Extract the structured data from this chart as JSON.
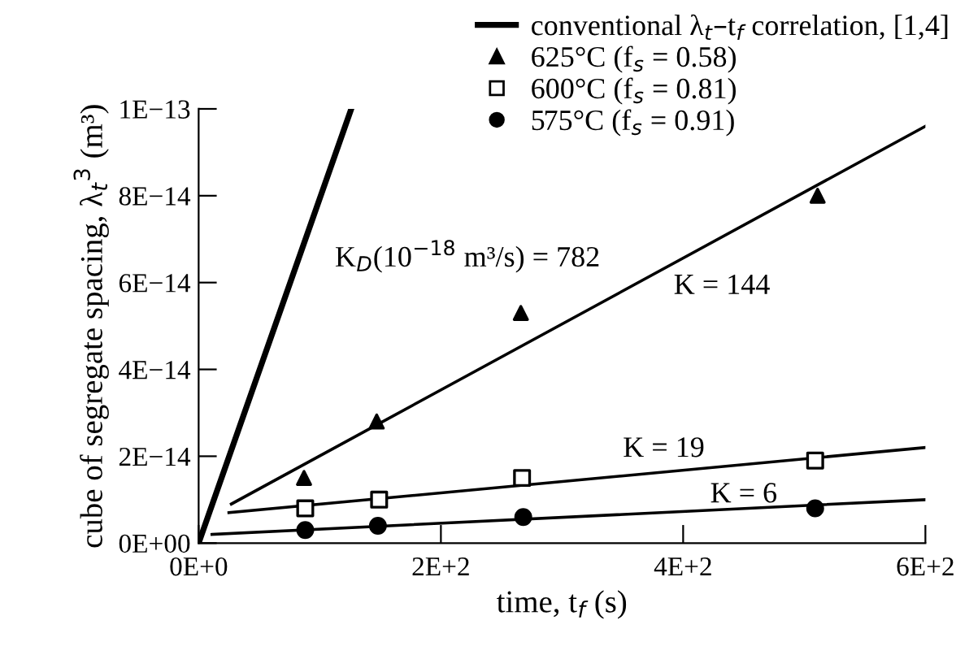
{
  "chart_data": {
    "type": "scatter",
    "xlabel": "time, t$_{f}$ (s)",
    "ylabel": "cube of segregate spacing, λ$_{t}$$^{3}$ (m³)",
    "xlim": [
      0,
      600
    ],
    "ylim": [
      0,
      1e-13
    ],
    "xticks": [
      {
        "value": 0,
        "label": "0E+0"
      },
      {
        "value": 200,
        "label": "2E+2"
      },
      {
        "value": 400,
        "label": "4E+2"
      },
      {
        "value": 600,
        "label": "6E+2"
      }
    ],
    "yticks": [
      {
        "value": 0,
        "label": "0E+00"
      },
      {
        "value": 2e-14,
        "label": "2E−14"
      },
      {
        "value": 4e-14,
        "label": "4E−14"
      },
      {
        "value": 6e-14,
        "label": "6E−14"
      },
      {
        "value": 8e-14,
        "label": "8E−14"
      },
      {
        "value": 1e-13,
        "label": "1E−13"
      }
    ],
    "legend": "top right",
    "grid": false,
    "series": [
      {
        "name": "conventional λ$_{t}$–t$_{f}$ correlation, [1,4]",
        "type": "line",
        "color": "#000000",
        "x": [
          0,
          126
        ],
        "values": [
          0,
          1e-13
        ]
      },
      {
        "name": "625°C (f$_{s}$ = 0.58)",
        "marker": "triangle",
        "color": "#000000",
        "x": [
          87,
          147,
          266,
          511
        ],
        "values": [
          1.5e-14,
          2.8e-14,
          5.3e-14,
          8e-14
        ]
      },
      {
        "name": "600°C (f$_{s}$ = 0.81)",
        "marker": "square",
        "color": "#000000",
        "x": [
          88,
          149,
          267,
          509
        ],
        "values": [
          8e-15,
          1e-14,
          1.5e-14,
          1.9e-14
        ]
      },
      {
        "name": "575°C (f$_{s}$ = 0.91)",
        "marker": "circle",
        "color": "#000000",
        "x": [
          88,
          148,
          268,
          509
        ],
        "values": [
          3e-15,
          4e-15,
          6e-15,
          8e-15
        ]
      },
      {
        "type": "line",
        "color": "#000000",
        "x": [
          27,
          600
        ],
        "values": [
          9e-15,
          9.6e-14
        ]
      },
      {
        "type": "line",
        "color": "#000000",
        "x": [
          25,
          600
        ],
        "values": [
          7e-15,
          2.2e-14
        ]
      },
      {
        "type": "line",
        "color": "#000000",
        "x": [
          11,
          600
        ],
        "values": [
          2e-15,
          1e-14
        ]
      }
    ],
    "annotations": [
      "K$_{D}$(10$^{−18}$ m³/s) = 782",
      "K = 144",
      "K = 19",
      "K = 6"
    ]
  }
}
